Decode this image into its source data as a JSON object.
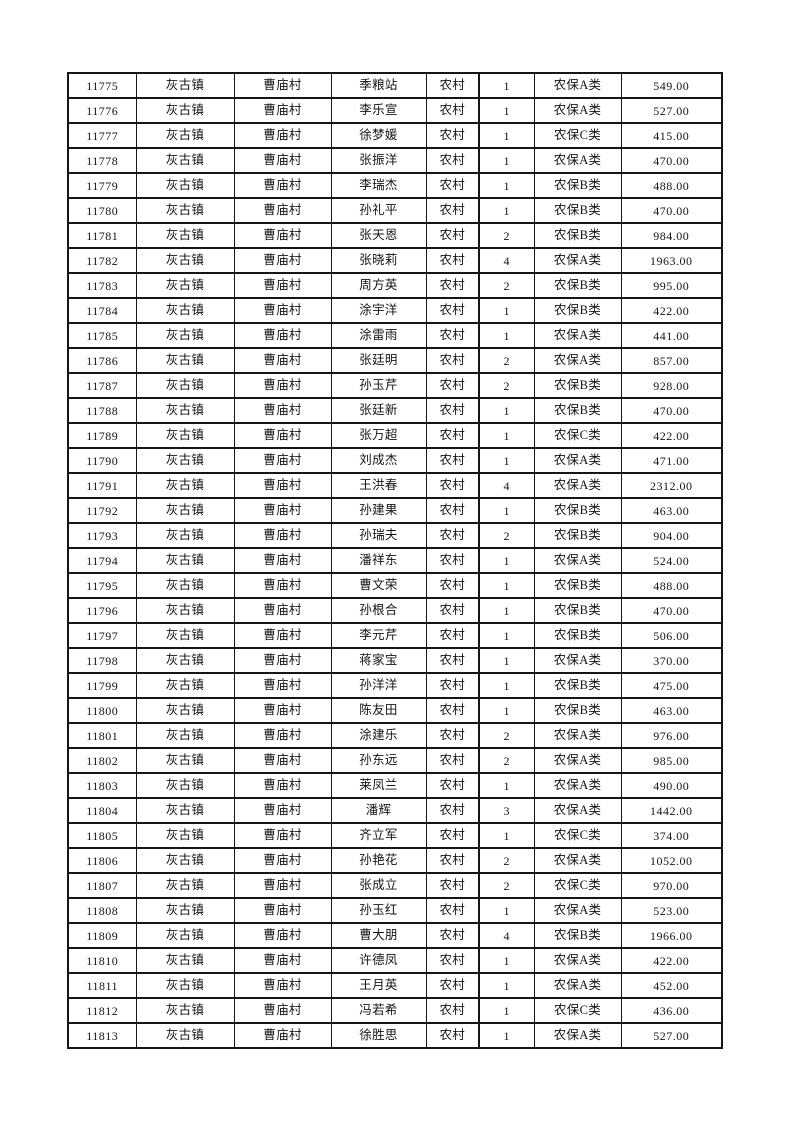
{
  "colors": {
    "page_background": "#ffffff",
    "table_border": "#161616",
    "text": "#141414"
  },
  "table": {
    "fields": [
      "id",
      "town",
      "village",
      "name",
      "category",
      "count",
      "insurance_type",
      "amount"
    ],
    "rows": [
      [
        "11775",
        "灰古镇",
        "曹庙村",
        "季粮站",
        "农村",
        "1",
        "农保A类",
        "549.00"
      ],
      [
        "11776",
        "灰古镇",
        "曹庙村",
        "李乐宣",
        "农村",
        "1",
        "农保A类",
        "527.00"
      ],
      [
        "11777",
        "灰古镇",
        "曹庙村",
        "徐梦媛",
        "农村",
        "1",
        "农保C类",
        "415.00"
      ],
      [
        "11778",
        "灰古镇",
        "曹庙村",
        "张振洋",
        "农村",
        "1",
        "农保A类",
        "470.00"
      ],
      [
        "11779",
        "灰古镇",
        "曹庙村",
        "李瑞杰",
        "农村",
        "1",
        "农保B类",
        "488.00"
      ],
      [
        "11780",
        "灰古镇",
        "曹庙村",
        "孙礼平",
        "农村",
        "1",
        "农保B类",
        "470.00"
      ],
      [
        "11781",
        "灰古镇",
        "曹庙村",
        "张天恩",
        "农村",
        "2",
        "农保B类",
        "984.00"
      ],
      [
        "11782",
        "灰古镇",
        "曹庙村",
        "张晓莉",
        "农村",
        "4",
        "农保A类",
        "1963.00"
      ],
      [
        "11783",
        "灰古镇",
        "曹庙村",
        "周方英",
        "农村",
        "2",
        "农保B类",
        "995.00"
      ],
      [
        "11784",
        "灰古镇",
        "曹庙村",
        "涂宇洋",
        "农村",
        "1",
        "农保B类",
        "422.00"
      ],
      [
        "11785",
        "灰古镇",
        "曹庙村",
        "涂雷雨",
        "农村",
        "1",
        "农保A类",
        "441.00"
      ],
      [
        "11786",
        "灰古镇",
        "曹庙村",
        "张廷明",
        "农村",
        "2",
        "农保A类",
        "857.00"
      ],
      [
        "11787",
        "灰古镇",
        "曹庙村",
        "孙玉芹",
        "农村",
        "2",
        "农保B类",
        "928.00"
      ],
      [
        "11788",
        "灰古镇",
        "曹庙村",
        "张廷新",
        "农村",
        "1",
        "农保B类",
        "470.00"
      ],
      [
        "11789",
        "灰古镇",
        "曹庙村",
        "张万超",
        "农村",
        "1",
        "农保C类",
        "422.00"
      ],
      [
        "11790",
        "灰古镇",
        "曹庙村",
        "刘成杰",
        "农村",
        "1",
        "农保A类",
        "471.00"
      ],
      [
        "11791",
        "灰古镇",
        "曹庙村",
        "王洪春",
        "农村",
        "4",
        "农保A类",
        "2312.00"
      ],
      [
        "11792",
        "灰古镇",
        "曹庙村",
        "孙建果",
        "农村",
        "1",
        "农保B类",
        "463.00"
      ],
      [
        "11793",
        "灰古镇",
        "曹庙村",
        "孙瑞夫",
        "农村",
        "2",
        "农保B类",
        "904.00"
      ],
      [
        "11794",
        "灰古镇",
        "曹庙村",
        "潘祥东",
        "农村",
        "1",
        "农保A类",
        "524.00"
      ],
      [
        "11795",
        "灰古镇",
        "曹庙村",
        "曹文荣",
        "农村",
        "1",
        "农保B类",
        "488.00"
      ],
      [
        "11796",
        "灰古镇",
        "曹庙村",
        "孙根合",
        "农村",
        "1",
        "农保B类",
        "470.00"
      ],
      [
        "11797",
        "灰古镇",
        "曹庙村",
        "李元芹",
        "农村",
        "1",
        "农保B类",
        "506.00"
      ],
      [
        "11798",
        "灰古镇",
        "曹庙村",
        "蒋家宝",
        "农村",
        "1",
        "农保A类",
        "370.00"
      ],
      [
        "11799",
        "灰古镇",
        "曹庙村",
        "孙洋洋",
        "农村",
        "1",
        "农保B类",
        "475.00"
      ],
      [
        "11800",
        "灰古镇",
        "曹庙村",
        "陈友田",
        "农村",
        "1",
        "农保B类",
        "463.00"
      ],
      [
        "11801",
        "灰古镇",
        "曹庙村",
        "涂建乐",
        "农村",
        "2",
        "农保A类",
        "976.00"
      ],
      [
        "11802",
        "灰古镇",
        "曹庙村",
        "孙东远",
        "农村",
        "2",
        "农保A类",
        "985.00"
      ],
      [
        "11803",
        "灰古镇",
        "曹庙村",
        "莱凤兰",
        "农村",
        "1",
        "农保A类",
        "490.00"
      ],
      [
        "11804",
        "灰古镇",
        "曹庙村",
        "潘辉",
        "农村",
        "3",
        "农保A类",
        "1442.00"
      ],
      [
        "11805",
        "灰古镇",
        "曹庙村",
        "齐立军",
        "农村",
        "1",
        "农保C类",
        "374.00"
      ],
      [
        "11806",
        "灰古镇",
        "曹庙村",
        "孙艳花",
        "农村",
        "2",
        "农保A类",
        "1052.00"
      ],
      [
        "11807",
        "灰古镇",
        "曹庙村",
        "张成立",
        "农村",
        "2",
        "农保C类",
        "970.00"
      ],
      [
        "11808",
        "灰古镇",
        "曹庙村",
        "孙玉红",
        "农村",
        "1",
        "农保A类",
        "523.00"
      ],
      [
        "11809",
        "灰古镇",
        "曹庙村",
        "曹大朋",
        "农村",
        "4",
        "农保B类",
        "1966.00"
      ],
      [
        "11810",
        "灰古镇",
        "曹庙村",
        "许德凤",
        "农村",
        "1",
        "农保A类",
        "422.00"
      ],
      [
        "11811",
        "灰古镇",
        "曹庙村",
        "王月英",
        "农村",
        "1",
        "农保A类",
        "452.00"
      ],
      [
        "11812",
        "灰古镇",
        "曹庙村",
        "冯若希",
        "农村",
        "1",
        "农保C类",
        "436.00"
      ],
      [
        "11813",
        "灰古镇",
        "曹庙村",
        "徐胜思",
        "农村",
        "1",
        "农保A类",
        "527.00"
      ]
    ]
  }
}
